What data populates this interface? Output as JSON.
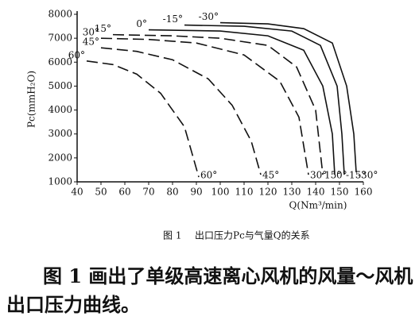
{
  "chart_data": {
    "type": "line",
    "y_label": "Pc(mmH₂O)",
    "x_label": "Q(Nm³/min)",
    "xlim": [
      40,
      160
    ],
    "xticks": [
      40,
      50,
      60,
      70,
      80,
      90,
      100,
      110,
      120,
      130,
      140,
      150,
      160
    ],
    "ylim": [
      1000,
      8000
    ],
    "yticks": [
      1000,
      2000,
      3000,
      4000,
      5000,
      6000,
      7000,
      8000
    ],
    "series": [
      {
        "name": "60°",
        "color": "#111",
        "dashed": true,
        "x": [
          44,
          55,
          65,
          75,
          85,
          91
        ],
        "values": [
          6050,
          5900,
          5500,
          4700,
          3300,
          1200
        ]
      },
      {
        "name": "45°",
        "color": "#111",
        "dashed": true,
        "x": [
          50,
          65,
          80,
          95,
          105,
          113,
          117
        ],
        "values": [
          6600,
          6450,
          6100,
          5300,
          4200,
          2700,
          1300
        ]
      },
      {
        "name": "30°",
        "color": "#111",
        "dashed": true,
        "x": [
          50,
          70,
          90,
          110,
          125,
          133,
          137
        ],
        "values": [
          7000,
          6950,
          6800,
          6300,
          5200,
          3700,
          1300
        ]
      },
      {
        "name": "15°",
        "color": "#111",
        "dashed": true,
        "x": [
          55,
          80,
          100,
          120,
          132,
          140,
          143
        ],
        "values": [
          7150,
          7100,
          7000,
          6700,
          5800,
          4000,
          1300
        ]
      },
      {
        "name": "0°",
        "color": "#111",
        "dashed": false,
        "x": [
          70,
          100,
          120,
          135,
          143,
          147,
          148
        ],
        "values": [
          7350,
          7300,
          7100,
          6500,
          5000,
          3000,
          1300
        ]
      },
      {
        "name": "-15°",
        "color": "#111",
        "dashed": false,
        "x": [
          85,
          110,
          130,
          142,
          149,
          151,
          152
        ],
        "values": [
          7550,
          7500,
          7300,
          6700,
          5000,
          3000,
          1300
        ]
      },
      {
        "name": "-30°",
        "color": "#111",
        "dashed": false,
        "x": [
          100,
          120,
          135,
          147,
          153,
          156,
          157
        ],
        "values": [
          7650,
          7600,
          7400,
          6800,
          5000,
          3000,
          1400
        ]
      }
    ]
  },
  "caption": {
    "number": "图 1",
    "text": "出口压力Pc与气量Q的关系"
  },
  "paragraph": "图 1 画出了单级高速离心风机的风量～风机出口压力曲线。"
}
